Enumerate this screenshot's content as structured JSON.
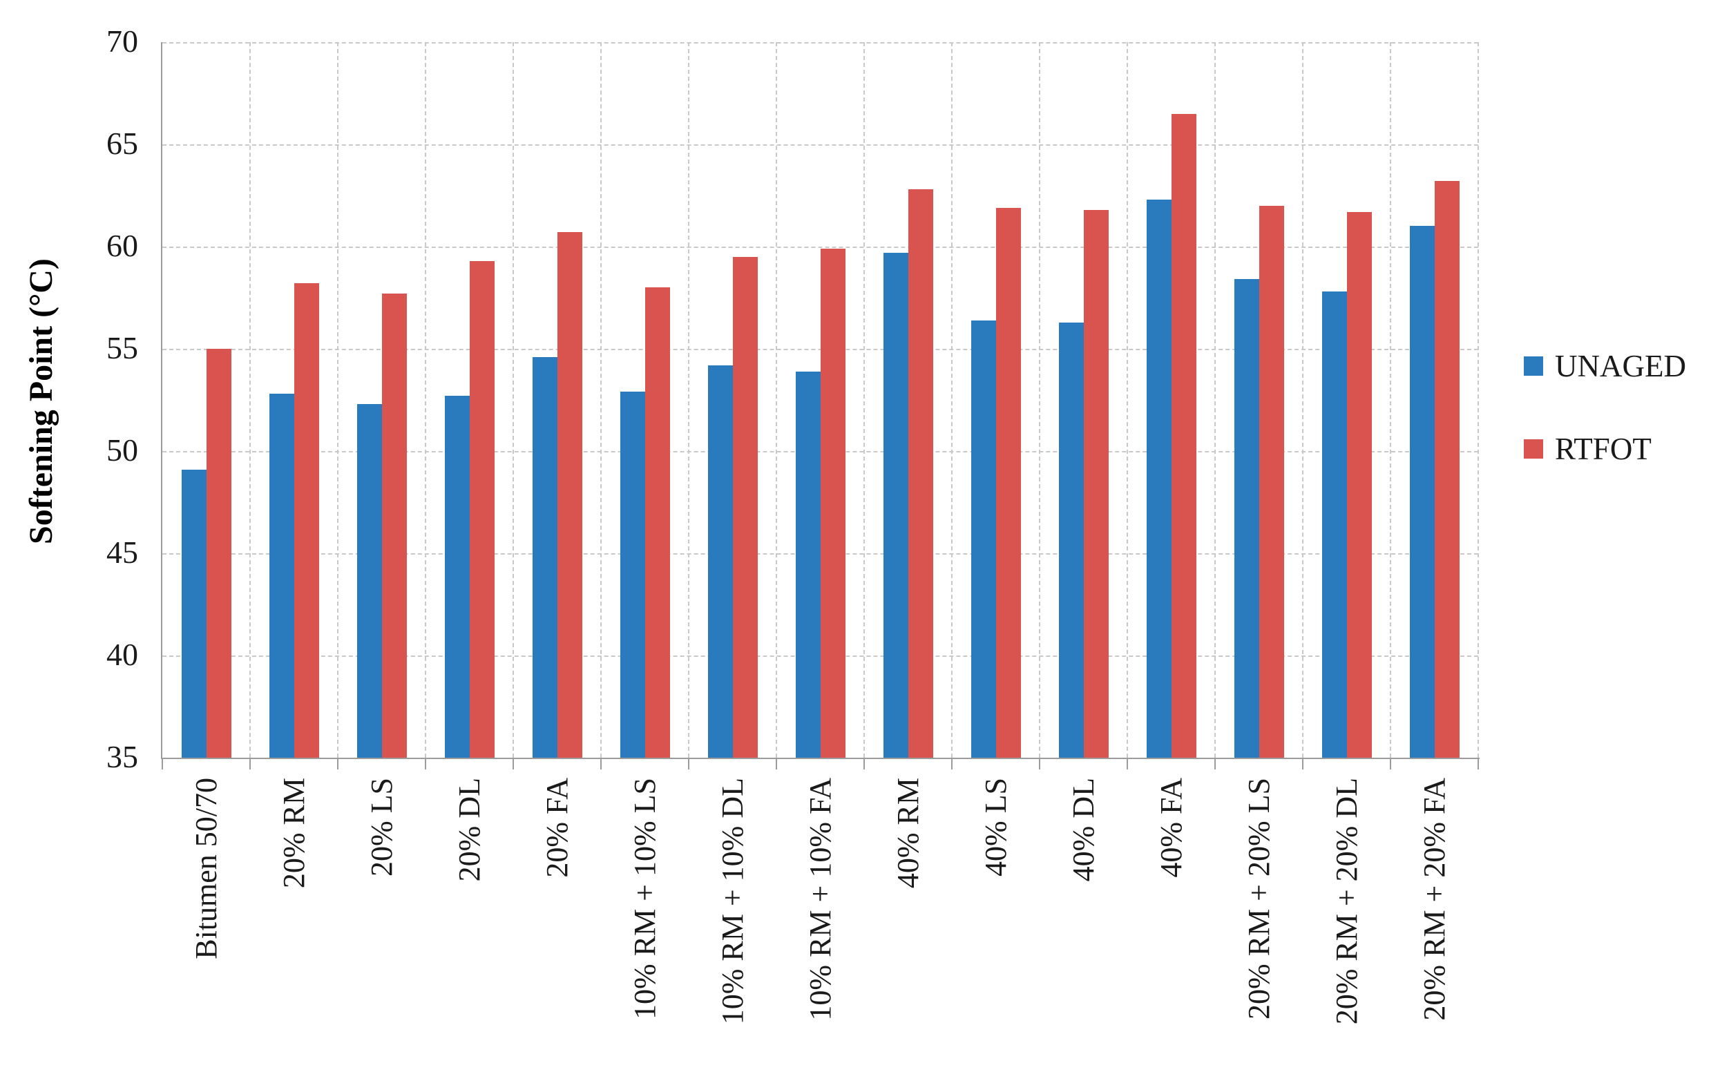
{
  "figure": {
    "y_axis_title": "Softening Point (°C)"
  },
  "chart_data": {
    "type": "bar",
    "title": "",
    "xlabel": "",
    "ylabel": "Softening Point (°C)",
    "ylim": [
      35,
      70
    ],
    "yticks": [
      35,
      40,
      45,
      50,
      55,
      60,
      65,
      70
    ],
    "grid": true,
    "legend_position": "right",
    "categories": [
      "Bitumen 50/70",
      "20% RM",
      "20% LS",
      "20% DL",
      "20% FA",
      "10% RM + 10% LS",
      "10% RM + 10% DL",
      "10% RM + 10% FA",
      "40% RM",
      "40% LS",
      "40% DL",
      "40% FA",
      "20% RM + 20% LS",
      "20% RM + 20% DL",
      "20% RM + 20% FA"
    ],
    "series": [
      {
        "name": "UNAGED",
        "color": "#2A7ABE",
        "values": [
          49.1,
          52.8,
          52.3,
          52.7,
          54.6,
          52.9,
          54.2,
          53.9,
          59.7,
          56.4,
          56.3,
          62.3,
          58.4,
          57.8,
          61.0
        ]
      },
      {
        "name": "RTFOT",
        "color": "#D9544F",
        "values": [
          55.0,
          58.2,
          57.7,
          59.3,
          60.7,
          58.0,
          59.5,
          59.9,
          62.8,
          61.9,
          61.8,
          66.5,
          62.0,
          61.7,
          63.2
        ]
      }
    ]
  }
}
